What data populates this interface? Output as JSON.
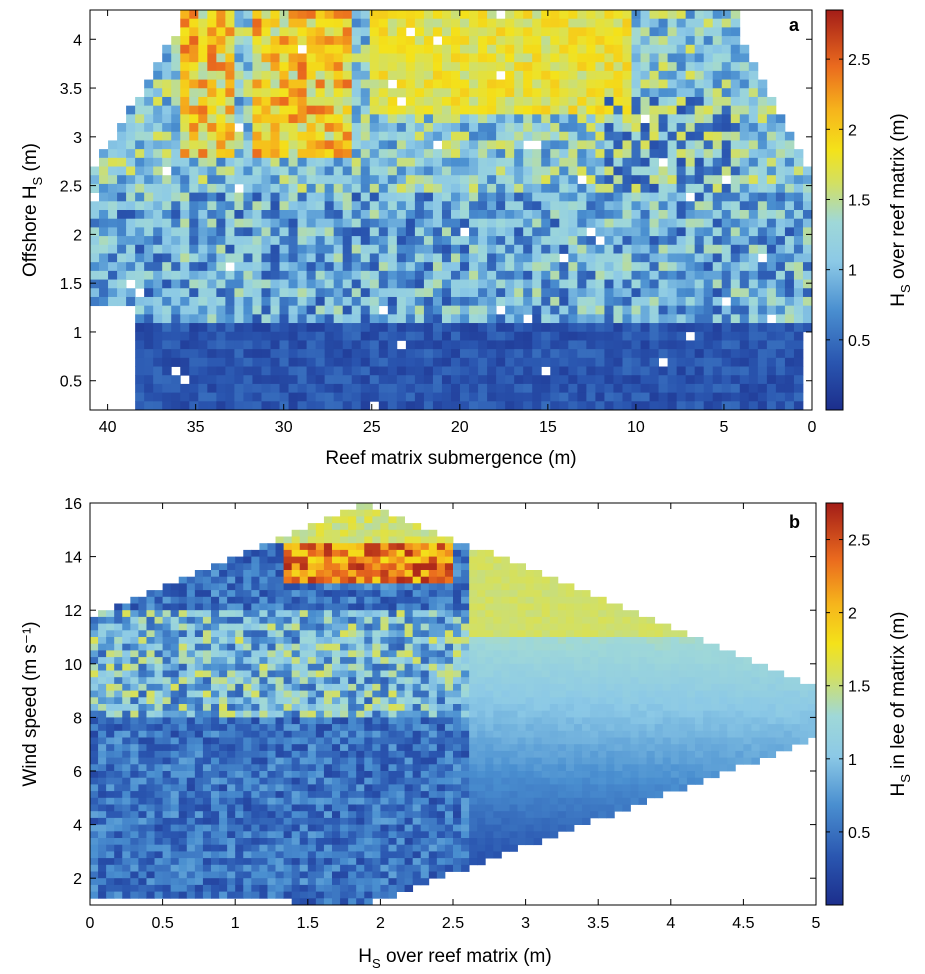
{
  "chart_data": [
    {
      "type": "heatmap",
      "panel_label": "a",
      "xlabel": "Reef matrix submergence (m)",
      "ylabel_main": "Offshore H",
      "ylabel_sub": "S",
      "ylabel_unit": " (m)",
      "x_reversed": true,
      "xlim": [
        0,
        41
      ],
      "ylim": [
        0.2,
        4.3
      ],
      "xticks": [
        "40",
        "35",
        "30",
        "25",
        "20",
        "15",
        "10",
        "5",
        "0"
      ],
      "yticks": [
        "0.5",
        "1",
        "1.5",
        "2",
        "2.5",
        "3",
        "3.5",
        "4"
      ],
      "colorbar": {
        "label_main": "H",
        "label_sub": "S",
        "label_rest": " over reef matrix (m)",
        "range": [
          0,
          2.85
        ],
        "ticks": [
          "0.5",
          "1",
          "1.5",
          "2",
          "2.5"
        ]
      },
      "colormap": "parula-jet",
      "grid": false
    },
    {
      "type": "heatmap",
      "panel_label": "b",
      "xlabel_main": "H",
      "xlabel_sub": "S",
      "xlabel_rest": " over reef matrix (m)",
      "ylabel": "Wind speed  (m s⁻¹)",
      "xlim": [
        0,
        5
      ],
      "ylim": [
        1,
        16
      ],
      "xticks": [
        "0",
        "0.5",
        "1",
        "1.5",
        "2",
        "2.5",
        "3",
        "3.5",
        "4",
        "4.5",
        "5"
      ],
      "yticks": [
        "2",
        "4",
        "6",
        "8",
        "10",
        "12",
        "14",
        "16"
      ],
      "colorbar": {
        "label_main": "H",
        "label_sub": "S",
        "label_rest": " in lee of matrix (m)",
        "range": [
          0,
          2.75
        ],
        "ticks": [
          "0.5",
          "1",
          "1.5",
          "2",
          "2.5"
        ]
      },
      "colormap": "parula-jet",
      "grid": false
    }
  ]
}
